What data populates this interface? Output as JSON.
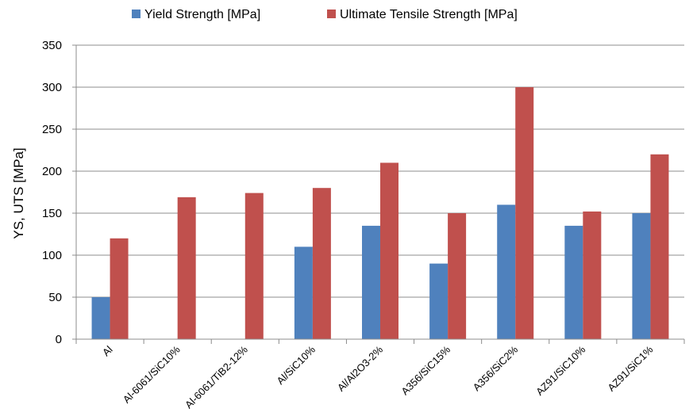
{
  "chart_data": {
    "type": "bar",
    "title": "",
    "xlabel": "",
    "ylabel": "YS, UTS [MPa]",
    "ylim": [
      0,
      350
    ],
    "yticks": [
      0,
      50,
      100,
      150,
      200,
      250,
      300,
      350
    ],
    "grid": true,
    "legend_position": "top",
    "categories": [
      "Al",
      "Al-6061/SiC10%",
      "Al-6061/TiB2-12%",
      "Al/SiC10%",
      "Al/Al2O3-2%",
      "A356/SiC15%",
      "A356/SiC2%",
      "AZ91/SiC10%",
      "AZ91/SiC1%"
    ],
    "series": [
      {
        "name": "Yield Strength [MPa]",
        "color": "#4f81bd",
        "values": [
          50,
          null,
          null,
          110,
          135,
          90,
          160,
          135,
          150
        ]
      },
      {
        "name": "Ultimate Tensile Strength [MPa]",
        "color": "#c0504d",
        "values": [
          120,
          169,
          174,
          180,
          210,
          150,
          300,
          152,
          220
        ]
      }
    ]
  }
}
